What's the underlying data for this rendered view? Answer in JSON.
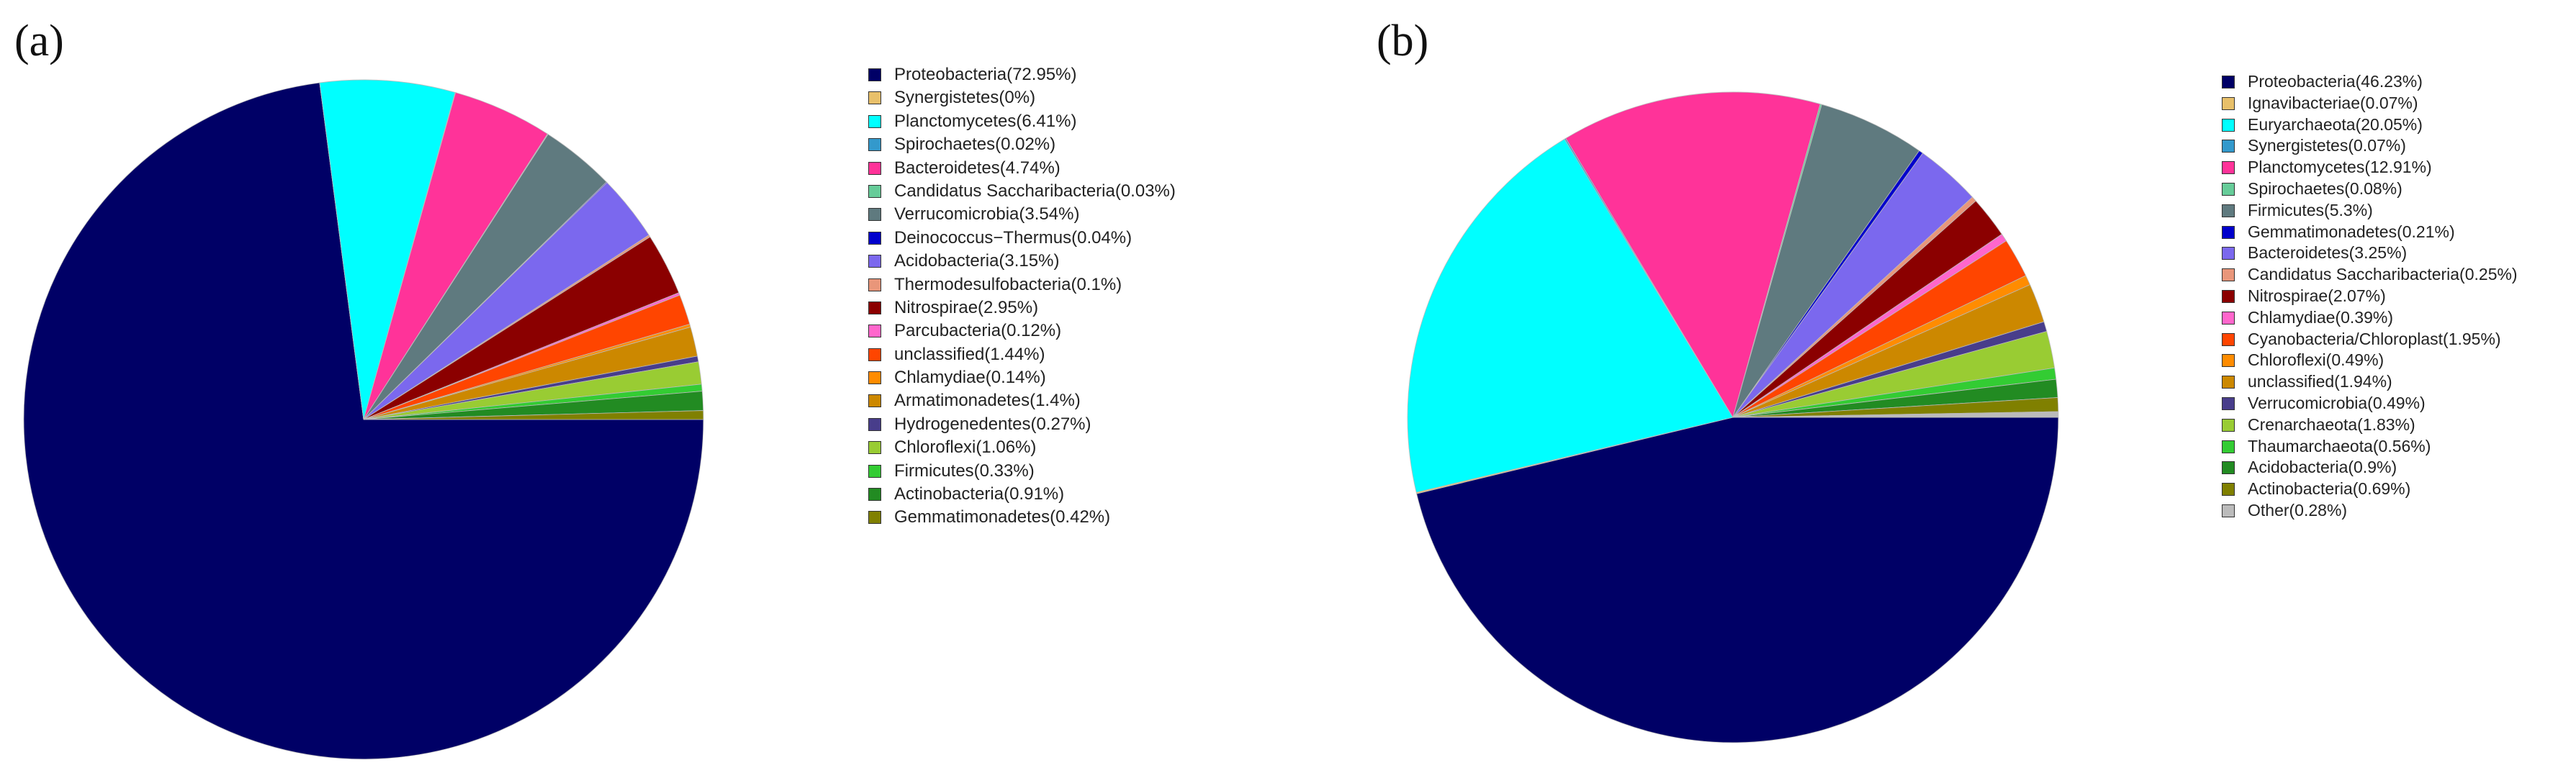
{
  "chart_data": [
    {
      "type": "pie",
      "panel_label": "(a)",
      "legend_position": "right",
      "slices": [
        {
          "label": "Proteobacteria(72.95%)",
          "value": 72.95,
          "color": "#000066"
        },
        {
          "label": "Synergistetes(0%)",
          "value": 0,
          "color": "#E8C06A"
        },
        {
          "label": "Planctomycetes(6.41%)",
          "value": 6.41,
          "color": "#00FFFF"
        },
        {
          "label": "Spirochaetes(0.02%)",
          "value": 0.02,
          "color": "#3399CC"
        },
        {
          "label": "Bacteroidetes(4.74%)",
          "value": 4.74,
          "color": "#FF3399"
        },
        {
          "label": "Candidatus Saccharibacteria(0.03%)",
          "value": 0.03,
          "color": "#66CC99"
        },
        {
          "label": "Verrucomicrobia(3.54%)",
          "value": 3.54,
          "color": "#5F7A7F"
        },
        {
          "label": "Deinococcus−Thermus(0.04%)",
          "value": 0.04,
          "color": "#0000CC"
        },
        {
          "label": "Acidobacteria(3.15%)",
          "value": 3.15,
          "color": "#7B68EE"
        },
        {
          "label": "Thermodesulfobacteria(0.1%)",
          "value": 0.1,
          "color": "#E9967A"
        },
        {
          "label": "Nitrospirae(2.95%)",
          "value": 2.95,
          "color": "#8B0000"
        },
        {
          "label": "Parcubacteria(0.12%)",
          "value": 0.12,
          "color": "#FF66CC"
        },
        {
          "label": "unclassified(1.44%)",
          "value": 1.44,
          "color": "#FF4500"
        },
        {
          "label": "Chlamydiae(0.14%)",
          "value": 0.14,
          "color": "#FF8C00"
        },
        {
          "label": "Armatimonadetes(1.4%)",
          "value": 1.4,
          "color": "#CC8800"
        },
        {
          "label": "Hydrogenedentes(0.27%)",
          "value": 0.27,
          "color": "#483D8B"
        },
        {
          "label": "Chloroflexi(1.06%)",
          "value": 1.06,
          "color": "#99CC33"
        },
        {
          "label": "Firmicutes(0.33%)",
          "value": 0.33,
          "color": "#33CC33"
        },
        {
          "label": "Actinobacteria(0.91%)",
          "value": 0.91,
          "color": "#228B22"
        },
        {
          "label": "Gemmatimonadetes(0.42%)",
          "value": 0.42,
          "color": "#808000"
        }
      ]
    },
    {
      "type": "pie",
      "panel_label": "(b)",
      "legend_position": "right",
      "slices": [
        {
          "label": "Proteobacteria(46.23%)",
          "value": 46.23,
          "color": "#000066"
        },
        {
          "label": "Ignavibacteriae(0.07%)",
          "value": 0.07,
          "color": "#E8C06A"
        },
        {
          "label": "Euryarchaeota(20.05%)",
          "value": 20.05,
          "color": "#00FFFF"
        },
        {
          "label": "Synergistetes(0.07%)",
          "value": 0.07,
          "color": "#3399CC"
        },
        {
          "label": "Planctomycetes(12.91%)",
          "value": 12.91,
          "color": "#FF3399"
        },
        {
          "label": "Spirochaetes(0.08%)",
          "value": 0.08,
          "color": "#66CC99"
        },
        {
          "label": "Firmicutes(5.3%)",
          "value": 5.3,
          "color": "#5F7A7F"
        },
        {
          "label": "Gemmatimonadetes(0.21%)",
          "value": 0.21,
          "color": "#0000CC"
        },
        {
          "label": "Bacteroidetes(3.25%)",
          "value": 3.25,
          "color": "#7B68EE"
        },
        {
          "label": "Candidatus Saccharibacteria(0.25%)",
          "value": 0.25,
          "color": "#E9967A"
        },
        {
          "label": "Nitrospirae(2.07%)",
          "value": 2.07,
          "color": "#8B0000"
        },
        {
          "label": "Chlamydiae(0.39%)",
          "value": 0.39,
          "color": "#FF66CC"
        },
        {
          "label": "Cyanobacteria/Chloroplast(1.95%)",
          "value": 1.95,
          "color": "#FF4500"
        },
        {
          "label": "Chloroflexi(0.49%)",
          "value": 0.49,
          "color": "#FF8C00"
        },
        {
          "label": "unclassified(1.94%)",
          "value": 1.94,
          "color": "#CC8800"
        },
        {
          "label": "Verrucomicrobia(0.49%)",
          "value": 0.49,
          "color": "#483D8B"
        },
        {
          "label": "Crenarchaeota(1.83%)",
          "value": 1.83,
          "color": "#99CC33"
        },
        {
          "label": "Thaumarchaeota(0.56%)",
          "value": 0.56,
          "color": "#33CC33"
        },
        {
          "label": "Acidobacteria(0.9%)",
          "value": 0.9,
          "color": "#228B22"
        },
        {
          "label": "Actinobacteria(0.69%)",
          "value": 0.69,
          "color": "#808000"
        },
        {
          "label": "Other(0.28%)",
          "value": 0.28,
          "color": "#BBBBBB"
        }
      ]
    }
  ]
}
